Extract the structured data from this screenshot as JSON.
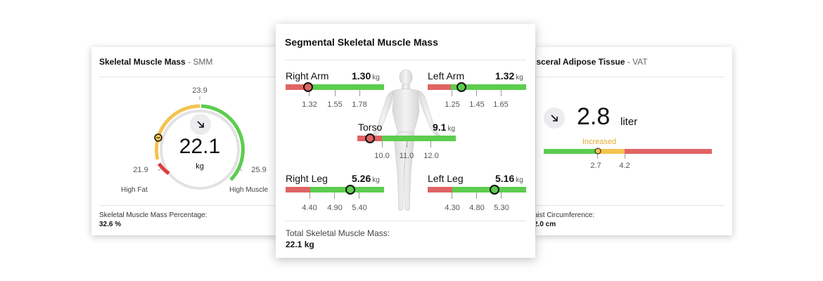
{
  "smm_card": {
    "title": "Skeletal Muscle Mass",
    "subtitle": " - SMM",
    "gauge_top": "23.9",
    "gauge_left": "21.9",
    "gauge_right": "25.9",
    "value": "22.1",
    "unit": "kg",
    "label_low": "High Fat",
    "label_high": "High Muscle",
    "footer_label": "Skeletal Muscle Mass Percentage:",
    "footer_value": "32.6 %",
    "icon": "trend-down-arrow-icon"
  },
  "segmental_card": {
    "title": "Segmental Skeletal Muscle Mass",
    "right_arm": {
      "name": "Right Arm",
      "value": "1.30",
      "unit": "kg",
      "ticks": [
        "1.32",
        "1.55",
        "1.78"
      ]
    },
    "left_arm": {
      "name": "Left Arm",
      "value": "1.32",
      "unit": "kg",
      "ticks": [
        "1.25",
        "1.45",
        "1.65"
      ]
    },
    "torso": {
      "name": "Torso",
      "value": "9.1",
      "unit": "kg",
      "ticks": [
        "10.0",
        "11.0",
        "12.0"
      ]
    },
    "right_leg": {
      "name": "Right Leg",
      "value": "5.26",
      "unit": "kg",
      "ticks": [
        "4.40",
        "4.90",
        "5.40"
      ]
    },
    "left_leg": {
      "name": "Left Leg",
      "value": "5.16",
      "unit": "kg",
      "ticks": [
        "4.30",
        "4.80",
        "5.30"
      ]
    },
    "footer_label": "Total Skeletal Muscle Mass:",
    "footer_value": "22.1 kg"
  },
  "vat_card": {
    "title": "isceral Adipose Tissue",
    "subtitle": " - VAT",
    "value": "2.8",
    "unit": "liter",
    "status": "Increased",
    "ticks": [
      "2.7",
      "4.2"
    ],
    "footer_label": "aist Circumference:",
    "footer_value": "2.0 cm",
    "icon": "trend-down-arrow-icon"
  },
  "colors": {
    "red": "#e06464",
    "green": "#5ccd4e",
    "yellow": "#f4c350",
    "status_text": "#e5a92c"
  }
}
